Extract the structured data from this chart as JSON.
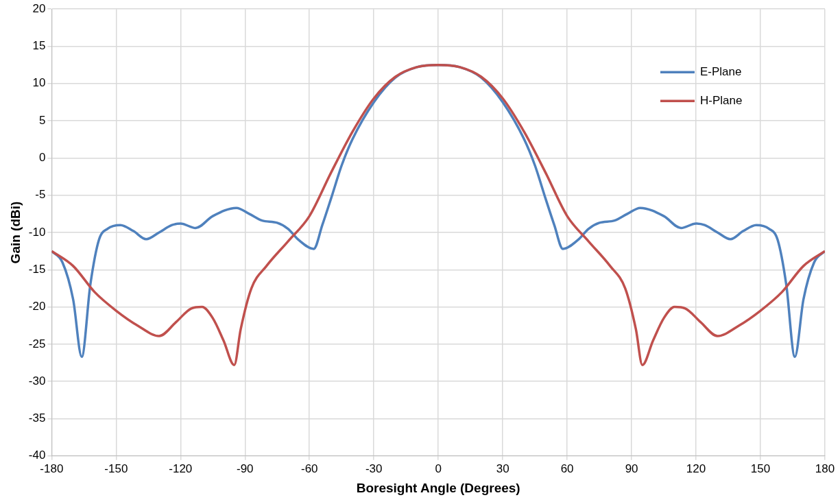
{
  "chart_data": {
    "type": "line",
    "xlabel": "Boresight Angle (Degrees)",
    "ylabel": "Gain (dBi)",
    "xlim": [
      -180,
      180
    ],
    "xticks": [
      -180,
      -150,
      -120,
      -90,
      -60,
      -30,
      0,
      30,
      60,
      90,
      120,
      150,
      180
    ],
    "ylim": [
      -40,
      20
    ],
    "yticks": [
      -40,
      -35,
      -30,
      -25,
      -20,
      -15,
      -10,
      -5,
      0,
      5,
      10,
      15,
      20
    ],
    "grid": true,
    "legend": "top right",
    "marker": "none",
    "line_style": "solid",
    "x": [
      -180,
      -175,
      -170,
      -166,
      -162,
      -158,
      -154,
      -148,
      -142,
      -136,
      -130,
      -124,
      -120,
      -113,
      -105,
      -94,
      -88,
      -82,
      -75,
      -70,
      -65,
      -58,
      -54,
      -50,
      -45,
      -40,
      -30,
      -20,
      -10,
      0,
      10,
      20,
      30,
      40,
      45,
      50,
      54,
      58,
      65,
      70,
      75,
      82,
      88,
      94,
      105,
      113,
      120,
      124,
      130,
      136,
      142,
      148,
      154,
      158,
      162,
      166,
      170,
      175,
      180
    ],
    "series": [
      {
        "name": "E-Plane",
        "color": "#4f81bd",
        "values": [
          -12.5,
          -14,
          -19,
          -26.7,
          -17,
          -11,
          -9.5,
          -9,
          -9.8,
          -10.9,
          -10,
          -9,
          -8.8,
          -9.4,
          -7.8,
          -6.7,
          -7.5,
          -8.4,
          -8.7,
          -9.5,
          -11,
          -12.2,
          -9,
          -5.5,
          -1,
          2.5,
          7.5,
          10.8,
          12.2,
          12.5,
          12.2,
          10.8,
          7.5,
          2.5,
          -1,
          -5.5,
          -9,
          -12.2,
          -11,
          -9.5,
          -8.7,
          -8.4,
          -7.5,
          -6.7,
          -7.8,
          -9.4,
          -8.8,
          -9,
          -10,
          -10.9,
          -9.8,
          -9,
          -9.5,
          -11,
          -17,
          -26.7,
          -19,
          -14,
          -12.5
        ]
      },
      {
        "name": "H-Plane",
        "color": "#c0504d",
        "x": [
          -180,
          -170,
          -160,
          -150,
          -140,
          -130,
          -122,
          -115,
          -110,
          -105,
          -100,
          -95,
          -92,
          -87,
          -80,
          -70,
          -60,
          -50,
          -40,
          -30,
          -20,
          -10,
          0,
          10,
          20,
          30,
          40,
          50,
          60,
          70,
          80,
          87,
          92,
          95,
          100,
          105,
          110,
          115,
          122,
          130,
          140,
          150,
          160,
          170,
          180
        ],
        "values": [
          -12.5,
          -14.5,
          -18,
          -20.5,
          -22.5,
          -23.9,
          -22,
          -20.2,
          -20,
          -21.5,
          -24.5,
          -27.8,
          -23,
          -17.5,
          -14.5,
          -11.2,
          -7.8,
          -2,
          3.5,
          8,
          10.9,
          12.2,
          12.5,
          12.2,
          10.9,
          8,
          3.5,
          -2,
          -7.8,
          -11.2,
          -14.5,
          -17.5,
          -23,
          -27.8,
          -24.5,
          -21.5,
          -20,
          -20.2,
          -22,
          -23.9,
          -22.5,
          -20.5,
          -18,
          -14.5,
          -12.5
        ]
      }
    ]
  }
}
